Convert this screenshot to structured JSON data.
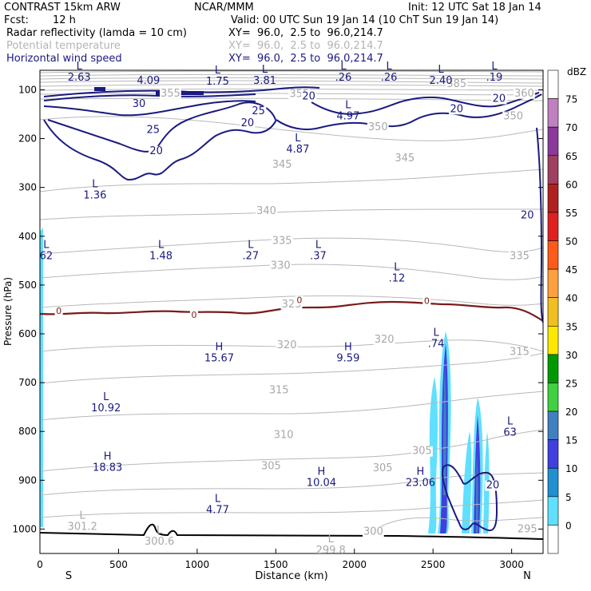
{
  "header": {
    "model": "CONTRAST 15km ARW",
    "org": "NCAR/MMM",
    "init": "Init: 12 UTC Sat 18 Jan 14",
    "fcst_label": "Fcst:",
    "fcst_value": "12 h",
    "valid": "Valid: 00 UTC Sun 19 Jan 14 (10 ChT Sun 19 Jan 14)"
  },
  "fields": [
    {
      "name": "Radar reflectivity (lamda = 10 cm)",
      "xy": "XY=  96.0,  2.5 to  96.0,214.7",
      "color": "#000000"
    },
    {
      "name": "Potential temperature",
      "xy": "XY=  96.0,  2.5 to  96.0,214.7",
      "color": "#b4b4b4"
    },
    {
      "name": "Horizontal wind speed",
      "xy": "XY=  96.0,  2.5 to  96.0,214.7",
      "color": "#1a1a80"
    }
  ],
  "colorbar": {
    "unit": "dBZ",
    "levels": [
      "75",
      "70",
      "65",
      "60",
      "55",
      "50",
      "45",
      "40",
      "35",
      "30",
      "25",
      "20",
      "15",
      "10",
      "5",
      "0"
    ],
    "colors": [
      "#ffffff",
      "#c080c0",
      "#8a3a9a",
      "#a04060",
      "#b02020",
      "#e02020",
      "#ff5a1a",
      "#ffa040",
      "#f0c020",
      "#ffe800",
      "#009a00",
      "#40d040",
      "#4080c0",
      "#4040e0",
      "#2090d0",
      "#60e0ff",
      "#ffffff"
    ]
  },
  "chart_data": {
    "type": "contour",
    "xlabel": "Distance (km)",
    "ylabel": "Pressure (hPa)",
    "xlim": [
      0,
      3200
    ],
    "ylim": [
      1050,
      60
    ],
    "x_ticks": [
      "0",
      "500",
      "1000",
      "1500",
      "2000",
      "2500",
      "3000"
    ],
    "y_ticks": [
      "100",
      "200",
      "300",
      "400",
      "500",
      "600",
      "700",
      "800",
      "900",
      "1000"
    ],
    "x_end_labels": [
      "S",
      "N"
    ],
    "theta_labels": [
      {
        "v": "385",
        "x": 2650,
        "p": 93
      },
      {
        "v": "360",
        "x": 3080,
        "p": 112
      },
      {
        "v": "355",
        "x": 830,
        "p": 112
      },
      {
        "v": "355",
        "x": 1650,
        "p": 113
      },
      {
        "v": "350",
        "x": 2150,
        "p": 181
      },
      {
        "v": "350",
        "x": 3010,
        "p": 159
      },
      {
        "v": "345",
        "x": 1540,
        "p": 258
      },
      {
        "v": "345",
        "x": 2320,
        "p": 245
      },
      {
        "v": "340",
        "x": 1440,
        "p": 353
      },
      {
        "v": "335",
        "x": 1540,
        "p": 414
      },
      {
        "v": "335",
        "x": 3050,
        "p": 445
      },
      {
        "v": "330",
        "x": 1530,
        "p": 465
      },
      {
        "v": "325",
        "x": 1600,
        "p": 544
      },
      {
        "v": "320",
        "x": 1570,
        "p": 628
      },
      {
        "v": "320",
        "x": 2190,
        "p": 616
      },
      {
        "v": "315",
        "x": 1520,
        "p": 720
      },
      {
        "v": "315",
        "x": 3050,
        "p": 642
      },
      {
        "v": "310",
        "x": 1550,
        "p": 812
      },
      {
        "v": "305",
        "x": 1470,
        "p": 876
      },
      {
        "v": "305",
        "x": 2180,
        "p": 880
      },
      {
        "v": "305",
        "x": 2430,
        "p": 845
      },
      {
        "v": "300",
        "x": 2120,
        "p": 1010
      },
      {
        "v": "295",
        "x": 3100,
        "p": 1005
      }
    ],
    "wind_labels": [
      {
        "v": "30",
        "x": 630,
        "p": 134
      },
      {
        "v": "25",
        "x": 1390,
        "p": 148
      },
      {
        "v": "25",
        "x": 720,
        "p": 187
      },
      {
        "v": "20",
        "x": 1710,
        "p": 118
      },
      {
        "v": "20",
        "x": 1320,
        "p": 173
      },
      {
        "v": "20",
        "x": 740,
        "p": 230
      },
      {
        "v": "20",
        "x": 2650,
        "p": 144
      },
      {
        "v": "20",
        "x": 2920,
        "p": 123
      },
      {
        "v": "20",
        "x": 3100,
        "p": 362
      },
      {
        "v": "20",
        "x": 2880,
        "p": 915
      }
    ],
    "extrema": [
      {
        "t": "L",
        "v": "2.63",
        "x": 250,
        "p": 80
      },
      {
        "t": "",
        "v": "4.09",
        "x": 690,
        "p": 86
      },
      {
        "t": "L",
        "v": "1.75",
        "x": 1130,
        "p": 88
      },
      {
        "t": "L",
        "v": "3.81",
        "x": 1430,
        "p": 86
      },
      {
        "t": "L",
        "v": ".26",
        "x": 1930,
        "p": 80
      },
      {
        "t": "L",
        "v": ".26",
        "x": 2220,
        "p": 80
      },
      {
        "t": "L",
        "v": "2.40",
        "x": 2550,
        "p": 86
      },
      {
        "t": "L",
        "v": ".19",
        "x": 2890,
        "p": 80
      },
      {
        "t": "L",
        "v": "4.97",
        "x": 1960,
        "p": 159
      },
      {
        "t": "L",
        "v": "4.87",
        "x": 1640,
        "p": 227
      },
      {
        "t": "L",
        "v": "1.36",
        "x": 350,
        "p": 321
      },
      {
        "t": "L",
        "v": "1.48",
        "x": 770,
        "p": 445
      },
      {
        "t": "L",
        "v": ".27",
        "x": 1340,
        "p": 445
      },
      {
        "t": "L",
        "v": ".37",
        "x": 1770,
        "p": 445
      },
      {
        "t": "L",
        "v": ".12",
        "x": 2270,
        "p": 491
      },
      {
        "t": "L",
        "v": "62",
        "x": 40,
        "p": 445
      },
      {
        "t": "L",
        "v": ".74",
        "x": 2520,
        "p": 625
      },
      {
        "t": "H",
        "v": "15.67",
        "x": 1140,
        "p": 655
      },
      {
        "t": "H",
        "v": "9.59",
        "x": 1960,
        "p": 655
      },
      {
        "t": "L",
        "v": "10.92",
        "x": 420,
        "p": 757
      },
      {
        "t": "L",
        "v": "63",
        "x": 2990,
        "p": 807
      },
      {
        "t": "H",
        "v": "18.83",
        "x": 430,
        "p": 879
      },
      {
        "t": "H",
        "v": "10.04",
        "x": 1790,
        "p": 910
      },
      {
        "t": "H",
        "v": "23.06",
        "x": 2420,
        "p": 910
      },
      {
        "t": "L",
        "v": "4.77",
        "x": 1130,
        "p": 966
      },
      {
        "t": "L",
        "v": "301.2",
        "x": 270,
        "p": 1000
      },
      {
        "t": "L",
        "v": "300.6",
        "x": 760,
        "p": 1030
      },
      {
        "t": "L",
        "v": "299.8",
        "x": 1850,
        "p": 1048
      }
    ],
    "zero_line_labels": [
      {
        "v": "0",
        "x": 120,
        "p": 556
      },
      {
        "v": "0",
        "x": 980,
        "p": 564
      },
      {
        "v": "0",
        "x": 1650,
        "p": 534
      },
      {
        "v": "0",
        "x": 2460,
        "p": 535
      }
    ]
  }
}
